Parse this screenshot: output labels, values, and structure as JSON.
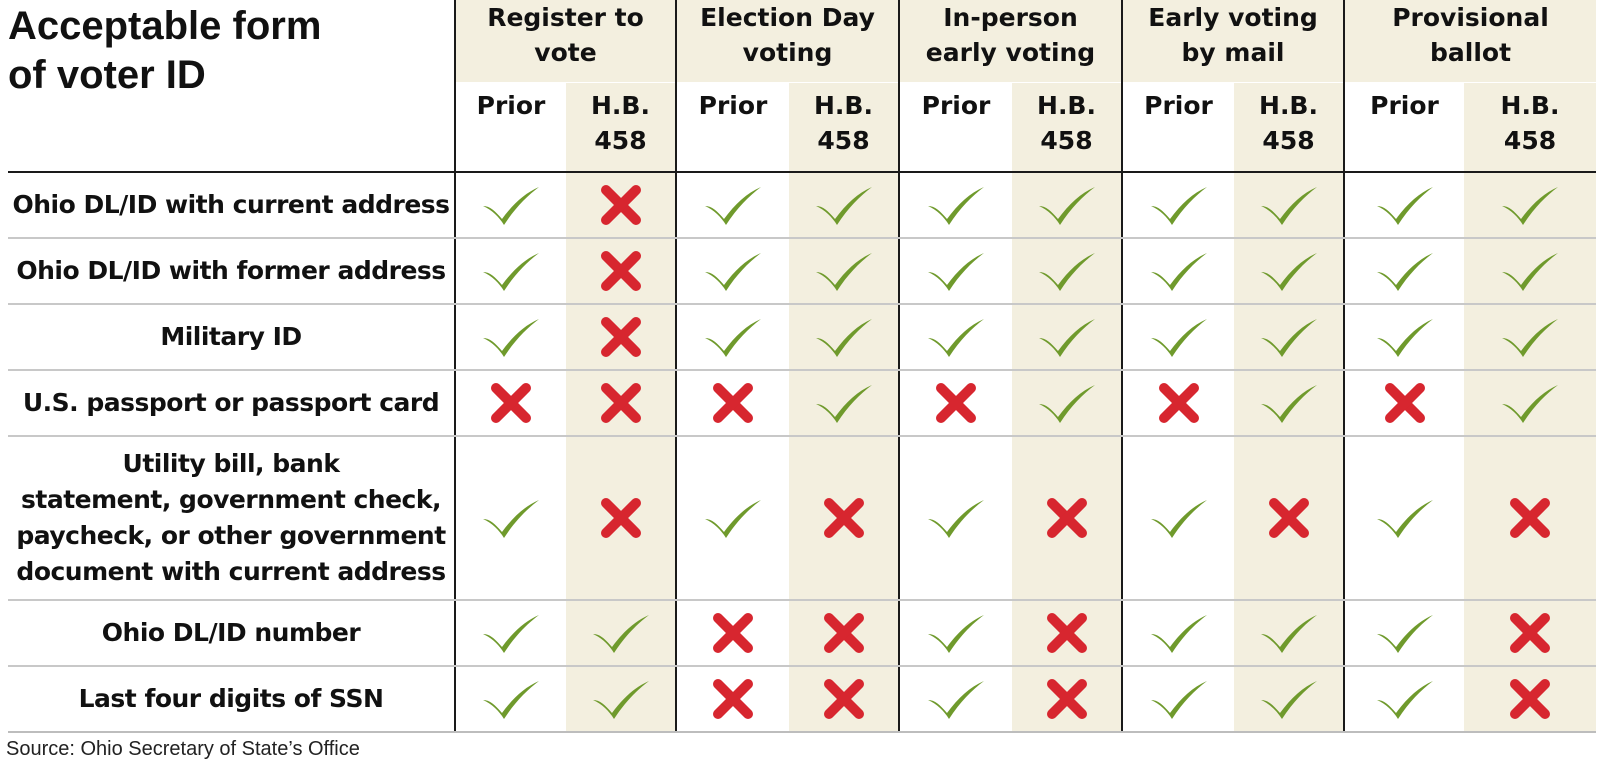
{
  "title": "Acceptable form\nof voter ID",
  "groups": [
    {
      "label": "Register to\nvote"
    },
    {
      "label": "Election Day\nvoting"
    },
    {
      "label": "In-person\nearly voting"
    },
    {
      "label": "Early voting\nby mail"
    },
    {
      "label": "Provisional\nballot"
    }
  ],
  "subheaders": {
    "prior": "Prior",
    "hb": "H.B.\n458"
  },
  "rows": [
    {
      "label": "Ohio DL/ID with current address",
      "marks": [
        "check",
        "cross",
        "check",
        "check",
        "check",
        "check",
        "check",
        "check",
        "check",
        "check"
      ]
    },
    {
      "label": "Ohio DL/ID with former address",
      "marks": [
        "check",
        "cross",
        "check",
        "check",
        "check",
        "check",
        "check",
        "check",
        "check",
        "check"
      ]
    },
    {
      "label": "Military ID",
      "marks": [
        "check",
        "cross",
        "check",
        "check",
        "check",
        "check",
        "check",
        "check",
        "check",
        "check"
      ]
    },
    {
      "label": "U.S. passport or passport card",
      "marks": [
        "cross",
        "cross",
        "cross",
        "check",
        "cross",
        "check",
        "cross",
        "check",
        "cross",
        "check"
      ]
    },
    {
      "label": "Utility bill, bank\nstatement, government check,\npaycheck, or other government\ndocument with current address",
      "marks": [
        "check",
        "cross",
        "check",
        "cross",
        "check",
        "cross",
        "check",
        "cross",
        "check",
        "cross"
      ]
    },
    {
      "label": "Ohio DL/ID number",
      "marks": [
        "check",
        "check",
        "cross",
        "cross",
        "check",
        "cross",
        "check",
        "check",
        "check",
        "cross"
      ]
    },
    {
      "label": "Last four digits of SSN",
      "marks": [
        "check",
        "check",
        "cross",
        "cross",
        "check",
        "cross",
        "check",
        "check",
        "check",
        "cross"
      ]
    }
  ],
  "source": "Source: Ohio Secretary of State’s Office",
  "colors": {
    "check": "#6f9a2c",
    "cross": "#d7262f",
    "shade": "#f3efdf"
  }
}
